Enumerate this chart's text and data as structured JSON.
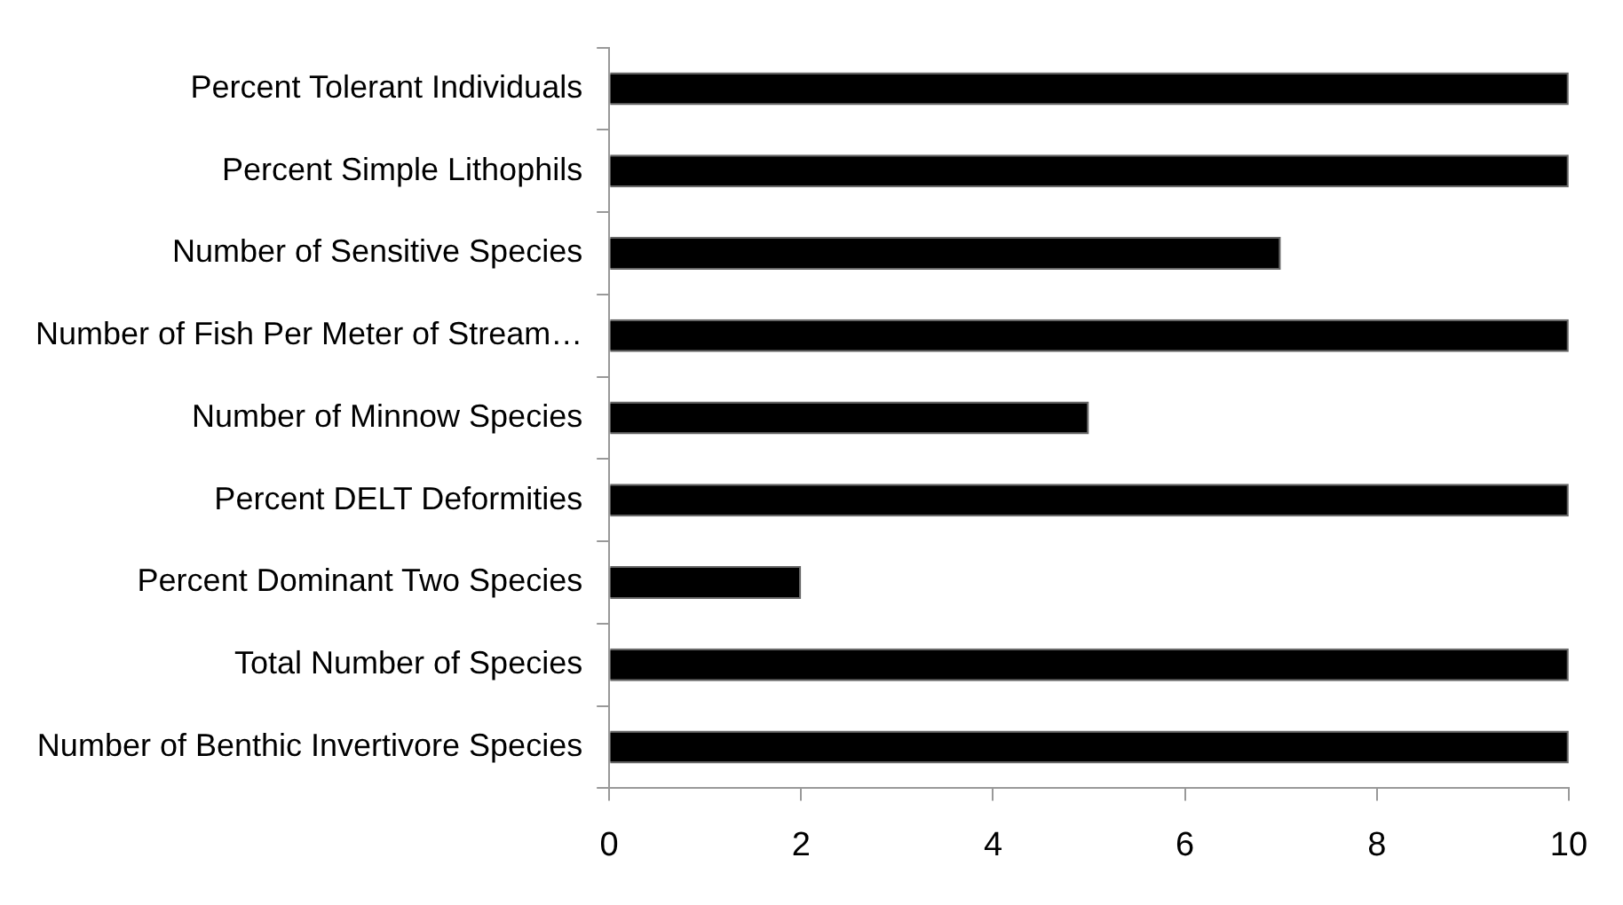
{
  "chart_data": {
    "type": "bar",
    "orientation": "horizontal",
    "categories": [
      "Percent Tolerant Individuals",
      "Percent Simple Lithophils",
      "Number of Sensitive Species",
      "Number of Fish Per Meter of Stream…",
      "Number of Minnow Species",
      "Percent DELT Deformities",
      "Percent Dominant Two Species",
      "Total Number of Species",
      "Number of Benthic Invertivore Species"
    ],
    "values": [
      10,
      10,
      7,
      10,
      5,
      10,
      2,
      10,
      10
    ],
    "color": "#000000",
    "xlim": [
      0,
      10
    ],
    "xticks": [
      0,
      2,
      4,
      6,
      8,
      10
    ],
    "grid": false,
    "legend": false
  }
}
